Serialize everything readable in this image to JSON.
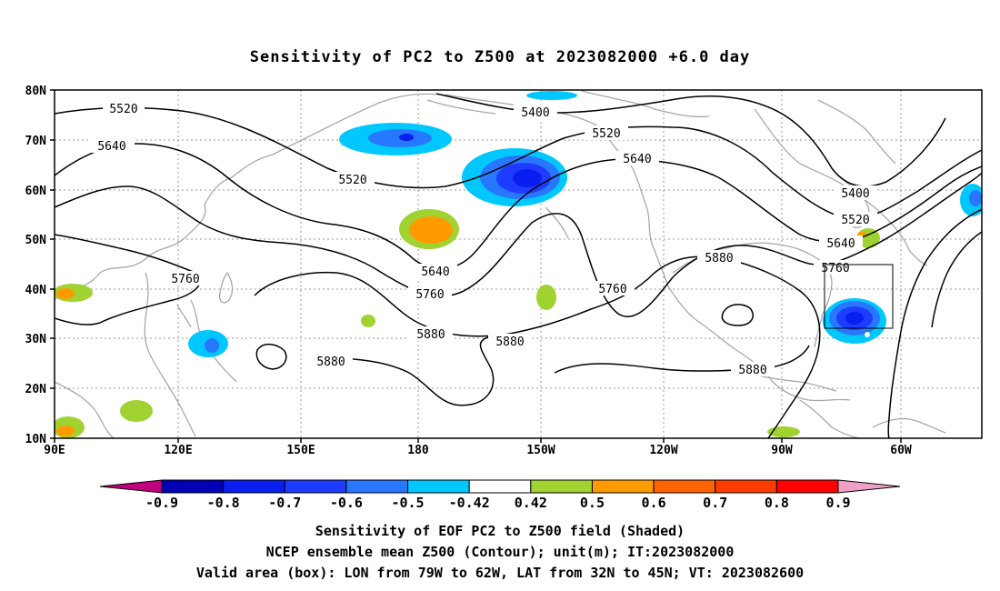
{
  "title": "Sensitivity of PC2 to Z500 at 2023082000 +6.0 day",
  "map": {
    "projection": "equirectangular",
    "lon_range": [
      "90E",
      "45W"
    ],
    "lat_range": [
      "10N",
      "80N"
    ],
    "lat_ticks": [
      "80N",
      "70N",
      "60N",
      "50N",
      "40N",
      "30N",
      "20N",
      "10N"
    ],
    "lon_ticks": [
      "90E",
      "120E",
      "150E",
      "180",
      "150W",
      "120W",
      "90W",
      "60W"
    ],
    "gridlines": "dotted",
    "contour_labels": [
      {
        "text": "5520",
        "line": "5520"
      },
      {
        "text": "5640",
        "line": "5640"
      },
      {
        "text": "5400",
        "line": "5400"
      },
      {
        "text": "5520",
        "line": "5520"
      },
      {
        "text": "5520",
        "line": "5520"
      },
      {
        "text": "5640",
        "line": "5640"
      },
      {
        "text": "5760",
        "line": "5760"
      },
      {
        "text": "5640",
        "line": "5640"
      },
      {
        "text": "5760",
        "line": "5760"
      },
      {
        "text": "5880",
        "line": "5880"
      },
      {
        "text": "5880",
        "line": "5880"
      },
      {
        "text": "5880",
        "line": "5880"
      },
      {
        "text": "5760",
        "line": "5760"
      },
      {
        "text": "5880",
        "line": "5880"
      },
      {
        "text": "5880",
        "line": "5880"
      },
      {
        "text": "5400",
        "line": "5400"
      },
      {
        "text": "5520",
        "line": "5520"
      },
      {
        "text": "5640",
        "line": "5640"
      },
      {
        "text": "5760",
        "line": "5760"
      }
    ],
    "valid_box": {
      "lon_from": "79W",
      "lon_to": "62W",
      "lat_from": "32N",
      "lat_to": "45N"
    }
  },
  "colorbar": {
    "labels": [
      "-0.9",
      "-0.8",
      "-0.7",
      "-0.6",
      "-0.5",
      "-0.42",
      "0.42",
      "0.5",
      "0.6",
      "0.7",
      "0.8",
      "0.9"
    ],
    "colors": [
      "#c0007f",
      "#0000b4",
      "#0a1ef0",
      "#1e3cff",
      "#2878ff",
      "#00c8ff",
      "#ffffff",
      "#a0d232",
      "#ff9b00",
      "#ff6400",
      "#ff3c00",
      "#ff0000",
      "#f0a0c8"
    ]
  },
  "captions": [
    "Sensitivity of EOF PC2 to Z500 field (Shaded)",
    "NCEP ensemble mean Z500 (Contour); unit(m); IT:2023082000",
    "Valid area (box): LON from 79W to 62W, LAT from 32N to 45N; VT: 2023082600"
  ]
}
